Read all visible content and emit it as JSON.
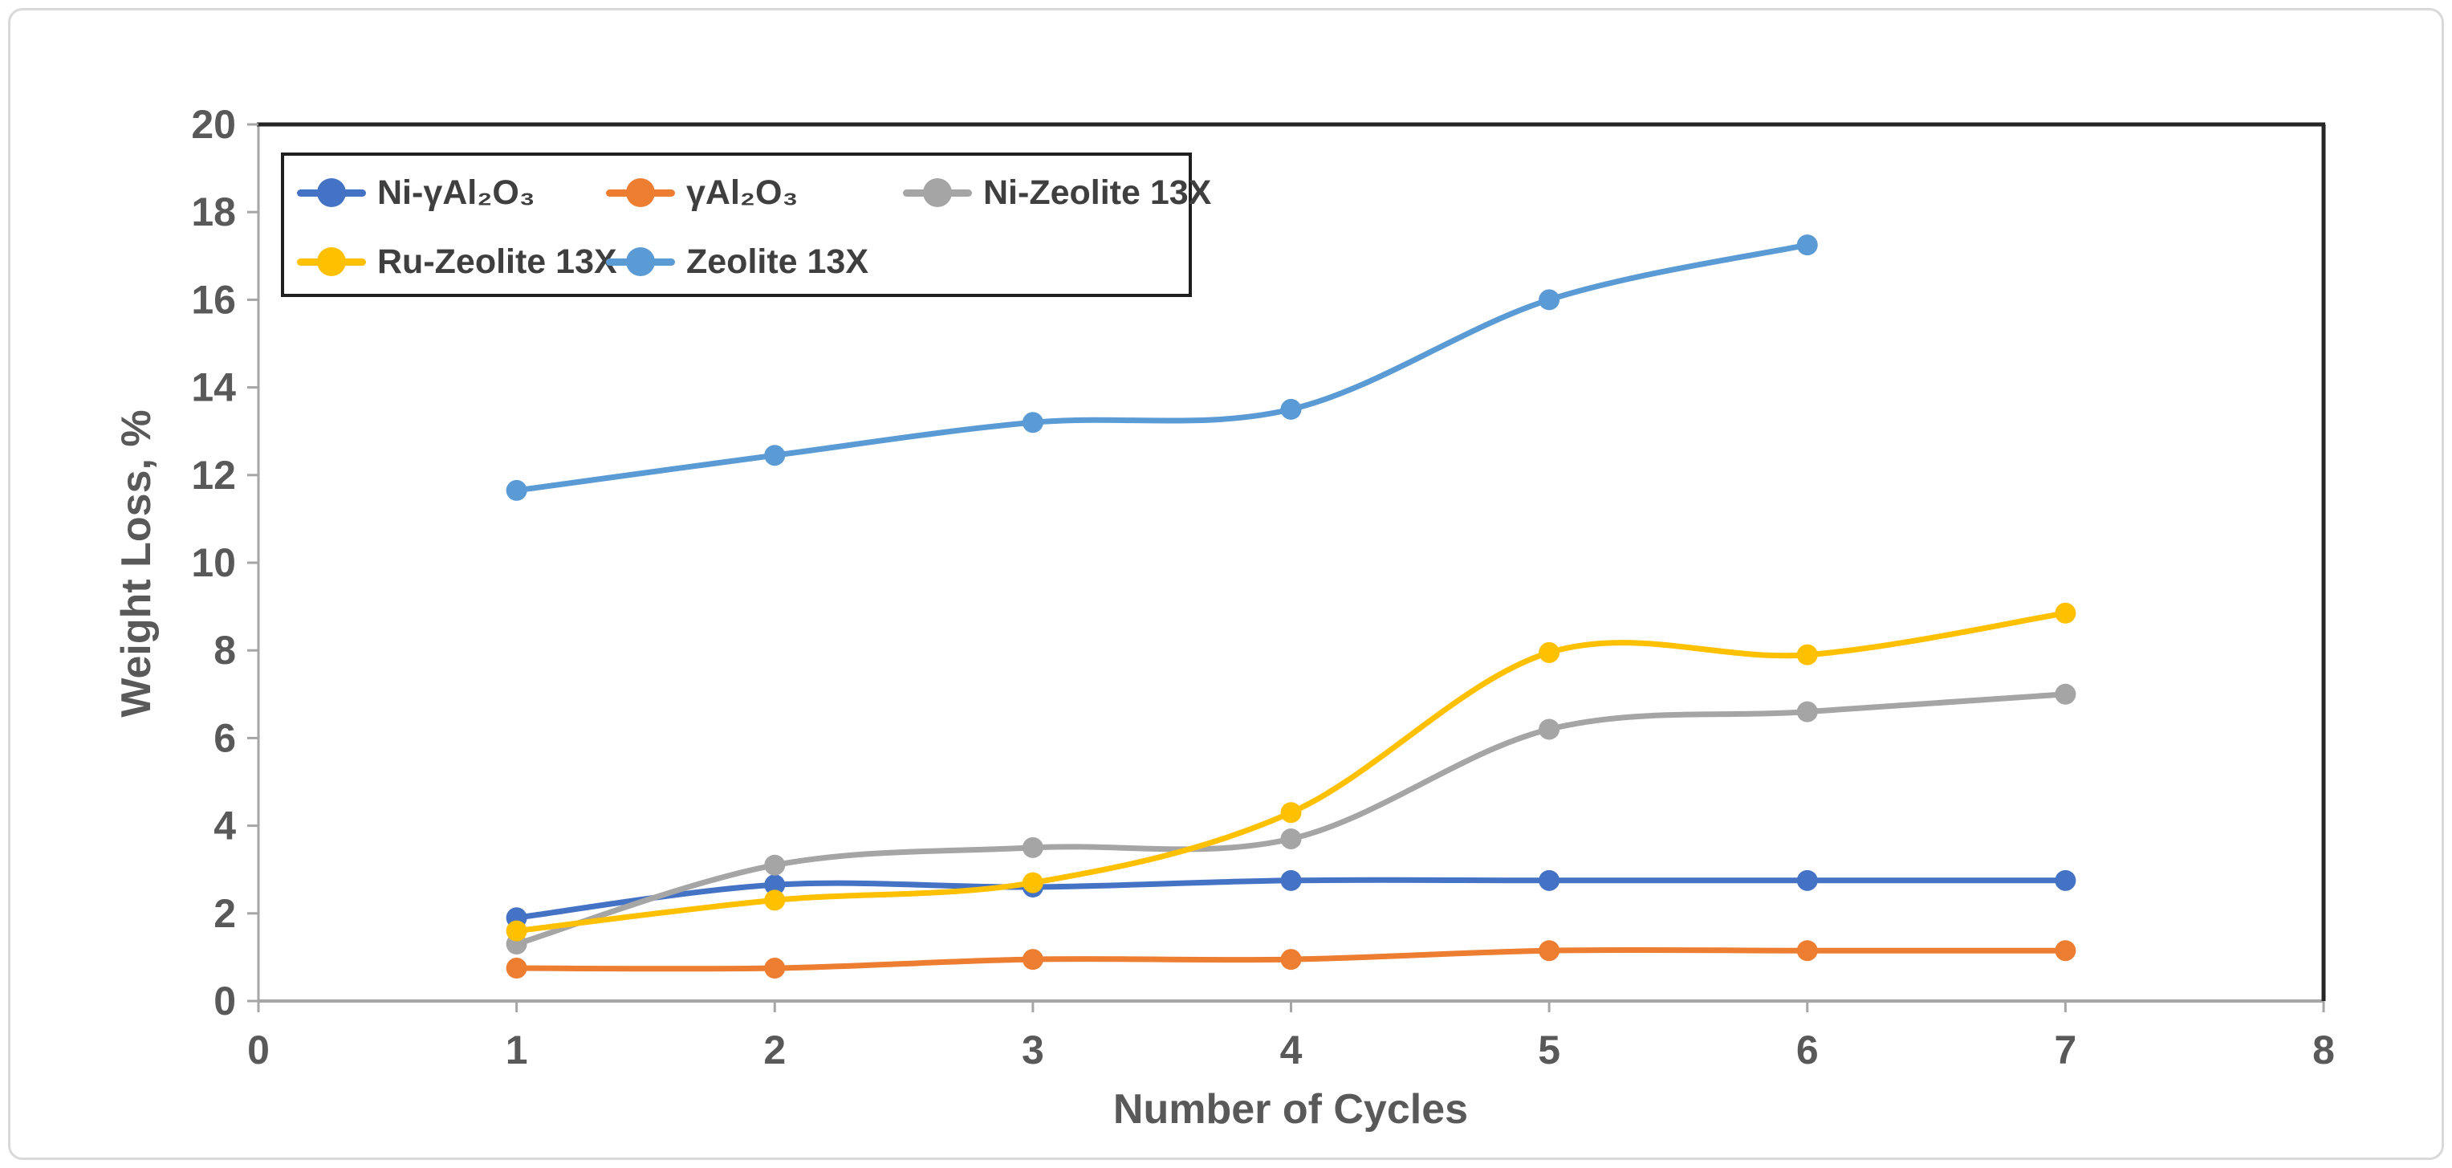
{
  "figure": {
    "background": "#ffffff",
    "border_color": "#d9d9d9"
  },
  "chart_data": {
    "type": "line",
    "title": "",
    "xlabel": "Number of Cycles",
    "ylabel": "Weight Loss, %",
    "x_range": [
      0,
      8
    ],
    "y_range": [
      0,
      20
    ],
    "x_ticks": [
      0,
      1,
      2,
      3,
      4,
      5,
      6,
      7,
      8
    ],
    "y_ticks": [
      0,
      2,
      4,
      6,
      8,
      10,
      12,
      14,
      16,
      18,
      20
    ],
    "grid": false,
    "line_style": "smooth",
    "marker": "circle",
    "legend_position": "top-left-inside",
    "axis_color": "#a6a6a6",
    "plot_border_color": "#262626",
    "label_color": "#595959",
    "legend_border_color": "#1f1f1f",
    "series": [
      {
        "name": "Ni-γAl₂O₃",
        "color": "#4472C4",
        "x": [
          1,
          2,
          3,
          4,
          5,
          6,
          7
        ],
        "y": [
          1.9,
          2.65,
          2.6,
          2.75,
          2.75,
          2.75,
          2.75
        ]
      },
      {
        "name": "γAl₂O₃",
        "color": "#ED7D31",
        "x": [
          1,
          2,
          3,
          4,
          5,
          6,
          7
        ],
        "y": [
          0.75,
          0.75,
          0.95,
          0.95,
          1.15,
          1.15,
          1.15
        ]
      },
      {
        "name": "Ni-Zeolite 13X",
        "color": "#A5A5A5",
        "x": [
          1,
          2,
          3,
          4,
          5,
          6,
          7
        ],
        "y": [
          1.3,
          3.1,
          3.5,
          3.7,
          6.2,
          6.6,
          7.0
        ]
      },
      {
        "name": "Ru-Zeolite 13X",
        "color": "#FFC000",
        "x": [
          1,
          2,
          3,
          4,
          5,
          6,
          7
        ],
        "y": [
          1.6,
          2.3,
          2.7,
          4.3,
          7.95,
          7.9,
          8.85
        ]
      },
      {
        "name": "Zeolite 13X",
        "color": "#5B9BD5",
        "x": [
          1,
          2,
          3,
          4,
          5,
          6
        ],
        "y": [
          11.65,
          12.45,
          13.2,
          13.5,
          16.0,
          17.25
        ]
      }
    ]
  }
}
